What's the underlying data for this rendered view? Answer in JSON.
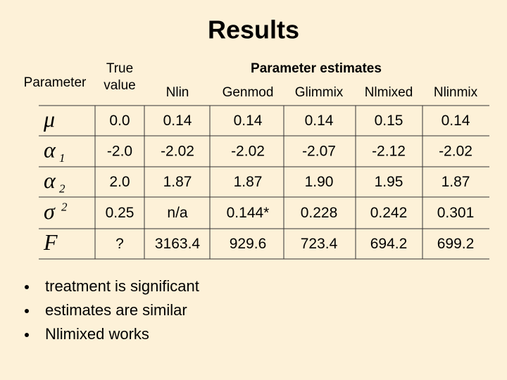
{
  "title": "Results",
  "table": {
    "header": {
      "parameter": "Parameter",
      "true_value": [
        "True",
        "value"
      ],
      "estimates": "Parameter estimates",
      "methods": [
        "Nlin",
        "Genmod",
        "Glimmix",
        "Nlmixed",
        "Nlinmix"
      ]
    },
    "rows": [
      {
        "symbol": "μ",
        "true": "0.0",
        "estimates": [
          "0.14",
          "0.14",
          "0.14",
          "0.15",
          "0.14"
        ]
      },
      {
        "symbol": "α",
        "subscript": "1",
        "true": "-2.0",
        "estimates": [
          "-2.02",
          "-2.02",
          "-2.07",
          "-2.12",
          "-2.02"
        ]
      },
      {
        "symbol": "α",
        "subscript": "2",
        "true": "2.0",
        "estimates": [
          "1.87",
          "1.87",
          "1.90",
          "1.95",
          "1.87"
        ]
      },
      {
        "symbol": "σ",
        "superscript": "2",
        "true": "0.25",
        "estimates": [
          "n/a",
          "0.144*",
          "0.228",
          "0.242",
          "0.301"
        ]
      },
      {
        "symbol": "F",
        "true": "?",
        "estimates": [
          "3163.4",
          "929.6",
          "723.4",
          "694.2",
          "699.2"
        ]
      }
    ]
  },
  "bullets": [
    "treatment is significant",
    "estimates are similar",
    "Nlimixed works"
  ]
}
